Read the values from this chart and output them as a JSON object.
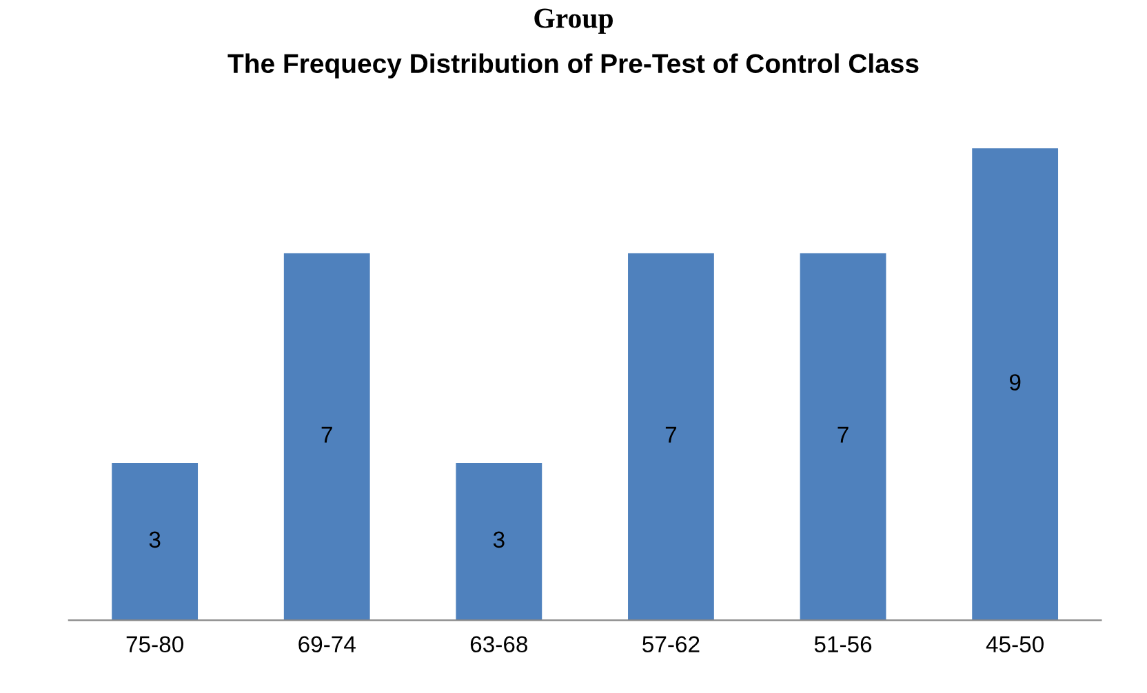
{
  "chart_data": {
    "type": "bar",
    "title": "The Frequecy Distribution of Pre-Test of Control Class",
    "annotations": [
      "Group"
    ],
    "categories": [
      "75-80",
      "69-74",
      "63-68",
      "57-62",
      "51-56",
      "45-50"
    ],
    "values": [
      3,
      7,
      3,
      7,
      7,
      9
    ],
    "color": "#4f81bd",
    "tick_labels": "x",
    "data_labels": true,
    "grid": false,
    "legend": false
  }
}
